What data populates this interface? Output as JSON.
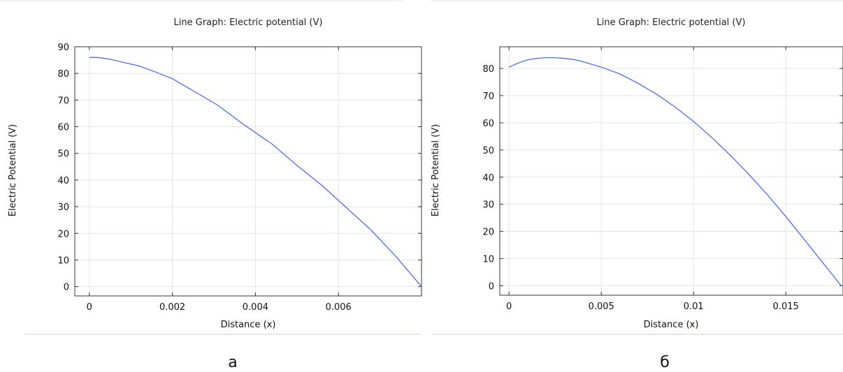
{
  "chart_data": [
    {
      "type": "line",
      "title": "Line Graph: Electric potential (V)",
      "xlabel": "Distance (x)",
      "ylabel": "Electric Potential (V)",
      "xlim": [
        -0.00035,
        0.008
      ],
      "ylim": [
        -3.5,
        90
      ],
      "xticks": [
        0,
        0.002,
        0.004,
        0.006
      ],
      "xtick_labels": [
        "0",
        "0.002",
        "0.004",
        "0.006"
      ],
      "yticks": [
        0,
        10,
        20,
        30,
        40,
        50,
        60,
        70,
        80,
        90
      ],
      "ytick_labels": [
        "0",
        "10",
        "20",
        "30",
        "40",
        "50",
        "60",
        "70",
        "80",
        "90"
      ],
      "grid": true,
      "series": [
        {
          "color": "#4a6cf7",
          "x": [
            0,
            0.0002,
            0.0005,
            0.0008,
            0.0012,
            0.0016,
            0.002,
            0.0025,
            0.0031,
            0.0037,
            0.0044,
            0.005,
            0.0056,
            0.0062,
            0.0068,
            0.0074,
            0.008
          ],
          "y": [
            86,
            86,
            85.3,
            84.2,
            82.8,
            80.5,
            78,
            73.5,
            68,
            61,
            53.5,
            45.5,
            38,
            29.5,
            21,
            11,
            0
          ]
        }
      ],
      "caption": "а"
    },
    {
      "type": "line",
      "title": "Line Graph: Electric potential (V)",
      "xlabel": "Distance (x)",
      "ylabel": "Electric Potential (V)",
      "xlim": [
        -0.0005,
        0.0181
      ],
      "ylim": [
        -3.5,
        88
      ],
      "xticks": [
        0,
        0.005,
        0.01,
        0.015
      ],
      "xtick_labels": [
        "0",
        "0.005",
        "0.01",
        "0.015"
      ],
      "yticks": [
        0,
        10,
        20,
        30,
        40,
        50,
        60,
        70,
        80
      ],
      "ytick_labels": [
        "0",
        "10",
        "20",
        "30",
        "40",
        "50",
        "60",
        "70",
        "80"
      ],
      "grid": true,
      "series": [
        {
          "color": "#4a6cf7",
          "x": [
            0,
            0.0005,
            0.001,
            0.0015,
            0.002,
            0.0025,
            0.003,
            0.0035,
            0.004,
            0.005,
            0.006,
            0.007,
            0.008,
            0.009,
            0.01,
            0.011,
            0.012,
            0.013,
            0.014,
            0.015,
            0.016,
            0.017,
            0.018
          ],
          "y": [
            80.5,
            82,
            83.2,
            83.7,
            84,
            84,
            83.7,
            83.3,
            82.5,
            80.5,
            78,
            74.5,
            70.5,
            65.8,
            60.5,
            54.5,
            48,
            41,
            33.5,
            25.5,
            17,
            8.5,
            0
          ]
        }
      ],
      "caption": "б"
    }
  ]
}
